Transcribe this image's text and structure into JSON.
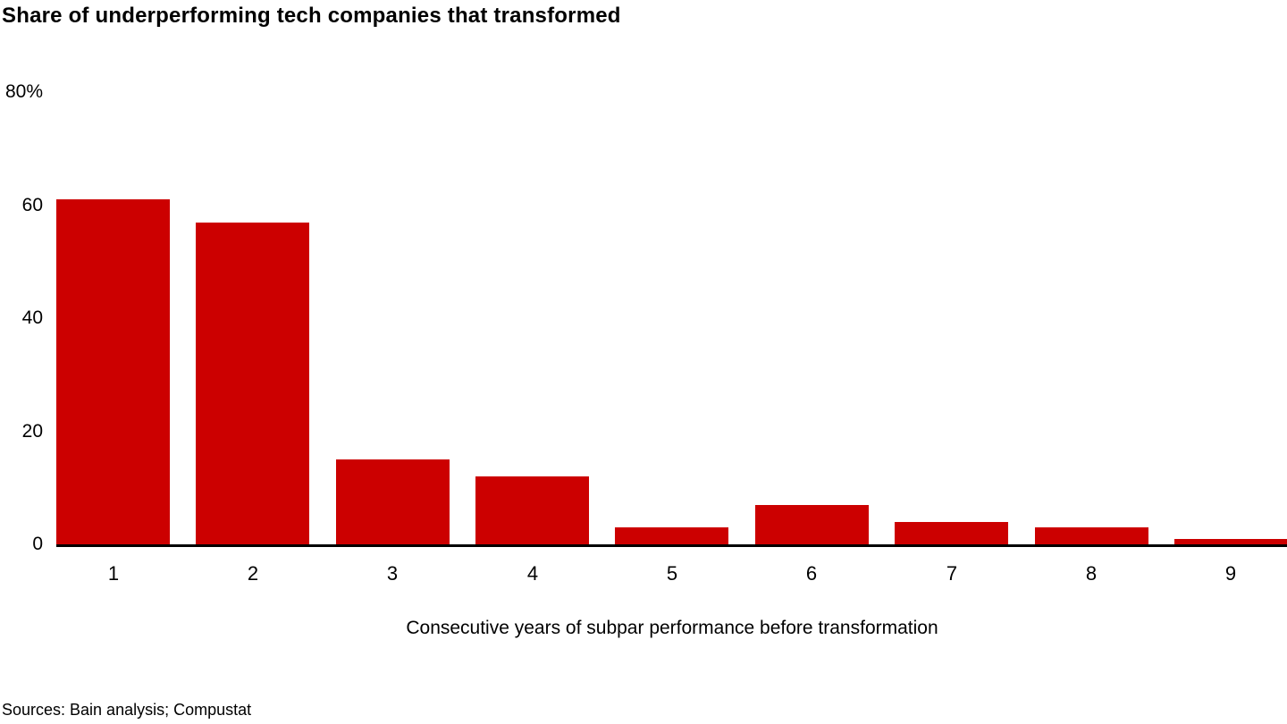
{
  "accent_color": "#cc0000",
  "axis_color": "#000000",
  "chart_data": {
    "type": "bar",
    "title": "Share of underperforming tech companies that transformed",
    "categories": [
      "1",
      "2",
      "3",
      "4",
      "5",
      "6",
      "7",
      "8",
      "9"
    ],
    "values": [
      61,
      57,
      15,
      12,
      3,
      7,
      4,
      3,
      1
    ],
    "xlabel": "Consecutive years of subpar performance before transformation",
    "ylabel": "",
    "ylim": [
      0,
      80
    ],
    "y_ticks": [
      {
        "value": 0,
        "label": "0"
      },
      {
        "value": 20,
        "label": "20"
      },
      {
        "value": 40,
        "label": "40"
      },
      {
        "value": 60,
        "label": "60"
      },
      {
        "value": 80,
        "label": "80%"
      }
    ],
    "grid": false,
    "legend": "none",
    "bar_color": "#cc0000"
  },
  "footer": {
    "sources": "Sources: Bain analysis; Compustat"
  }
}
